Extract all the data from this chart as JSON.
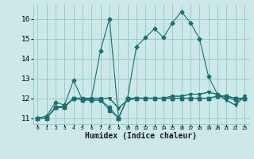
{
  "xlabel": "Humidex (Indice chaleur)",
  "bg_color": "#cce8e8",
  "grid_color": "#99cccc",
  "line_color": "#1a7070",
  "xlim": [
    -0.5,
    23.5
  ],
  "ylim": [
    10.7,
    16.7
  ],
  "yticks": [
    11,
    12,
    13,
    14,
    15,
    16
  ],
  "xtick_labels": [
    "0",
    "1",
    "2",
    "3",
    "4",
    "5",
    "6",
    "7",
    "8",
    "9",
    "10",
    "11",
    "12",
    "13",
    "14",
    "15",
    "16",
    "17",
    "18",
    "19",
    "20",
    "21",
    "22",
    "23"
  ],
  "series": [
    [
      11.0,
      11.1,
      11.8,
      11.65,
      12.9,
      11.9,
      12.0,
      14.4,
      16.0,
      11.0,
      12.0,
      14.6,
      15.05,
      15.5,
      15.05,
      15.8,
      16.35,
      15.8,
      15.0,
      13.1,
      12.2,
      12.05,
      11.9,
      12.0
    ],
    [
      11.0,
      11.0,
      11.55,
      11.55,
      12.0,
      12.0,
      11.9,
      11.9,
      11.55,
      11.0,
      12.0,
      12.0,
      12.0,
      12.0,
      12.0,
      12.0,
      12.0,
      12.0,
      12.0,
      12.0,
      12.1,
      12.1,
      12.0,
      12.0
    ],
    [
      11.0,
      11.0,
      11.55,
      11.55,
      12.0,
      11.9,
      11.9,
      11.9,
      11.4,
      11.0,
      12.0,
      12.0,
      12.0,
      12.0,
      12.0,
      12.0,
      12.0,
      12.0,
      12.0,
      12.0,
      12.1,
      12.1,
      12.0,
      12.0
    ],
    [
      11.0,
      11.0,
      11.55,
      11.6,
      12.0,
      12.0,
      12.0,
      12.0,
      12.0,
      11.5,
      11.9,
      12.0,
      12.0,
      12.0,
      12.0,
      12.1,
      12.1,
      12.2,
      12.2,
      12.3,
      12.2,
      11.9,
      11.65,
      12.1
    ],
    [
      11.0,
      11.0,
      11.5,
      11.55,
      12.0,
      12.0,
      12.0,
      12.0,
      12.0,
      11.5,
      11.9,
      12.0,
      12.0,
      12.0,
      12.0,
      12.1,
      12.1,
      12.2,
      12.2,
      12.3,
      12.2,
      11.9,
      11.65,
      12.1
    ]
  ],
  "markers": [
    "D",
    "s",
    "s",
    "v",
    "v"
  ],
  "marker_sizes": [
    2.5,
    2.5,
    2.5,
    2.5,
    2.5
  ]
}
